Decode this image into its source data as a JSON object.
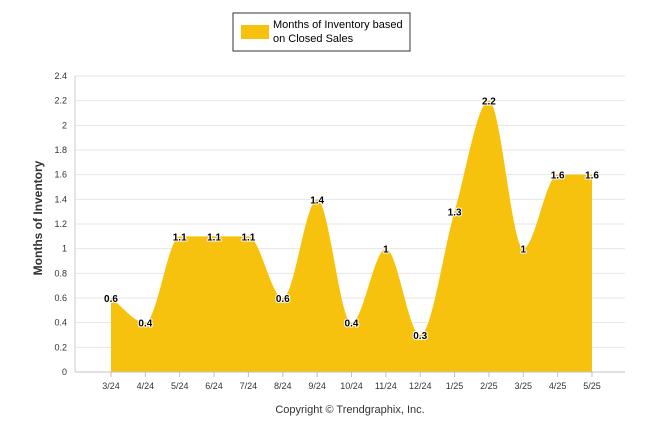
{
  "chart_data": {
    "type": "area",
    "title": "",
    "xlabel": "",
    "ylabel": "Months of Inventory",
    "categories": [
      "3/24",
      "4/24",
      "5/24",
      "6/24",
      "7/24",
      "8/24",
      "9/24",
      "10/24",
      "11/24",
      "12/24",
      "1/25",
      "2/25",
      "3/25",
      "4/25",
      "5/25"
    ],
    "series": [
      {
        "name": "Months of Inventory based on Closed Sales",
        "values": [
          0.6,
          0.4,
          1.1,
          1.1,
          1.1,
          0.6,
          1.4,
          0.4,
          1,
          0.3,
          1.3,
          2.2,
          1,
          1.6,
          1.6
        ],
        "labels": [
          "0.6",
          "0.4",
          "1.1",
          "1.1",
          "1.1",
          "0.6",
          "1.4",
          "0.4",
          "1",
          "0.3",
          "1.3",
          "2.2",
          "1",
          "1.6",
          "1.6"
        ],
        "color": "#F7C20E"
      }
    ],
    "ylim": [
      0,
      2.4
    ],
    "yticks": [
      "0",
      "0.2",
      "0.4",
      "0.6",
      "0.8",
      "1",
      "1.2",
      "1.4",
      "1.6",
      "1.8",
      "2",
      "2.2",
      "2.4"
    ],
    "grid": true,
    "legend_position": "top-center"
  },
  "legend": {
    "line1": "Months of Inventory based",
    "line2": "on Closed Sales",
    "color": "#F7C20E"
  },
  "footer": {
    "credit": "Copyright © Trendgraphix, Inc."
  }
}
